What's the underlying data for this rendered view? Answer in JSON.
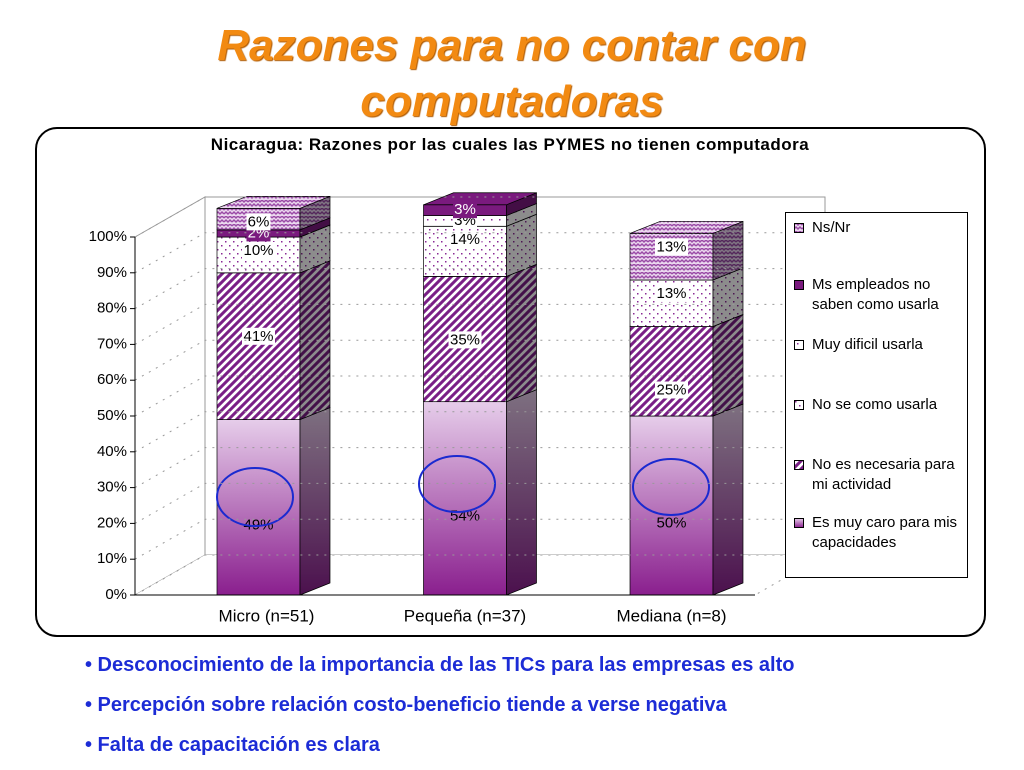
{
  "title": "Razones para no contar con computadoras",
  "chart_data": {
    "type": "bar3d_stacked",
    "title": "Nicaragua: Razones por las cuales las PYMES no tienen computadora",
    "categories": [
      "Micro (n=51)",
      "Pequeña (n=37)",
      "Mediana (n=8)"
    ],
    "series": [
      {
        "name": "Es muy caro para mis capacidades",
        "color": "#8a1f8e",
        "values": [
          49,
          54,
          50
        ],
        "value_labels": [
          "49%",
          "54%",
          "50%"
        ]
      },
      {
        "name": "No es necesaria para mi actividad",
        "color": "#7a1f86",
        "values": [
          41,
          35,
          25
        ],
        "value_labels": [
          "41%",
          "35%",
          "25%"
        ]
      },
      {
        "name": "No se como usarla",
        "color": "#8a2a96",
        "values": [
          10,
          14,
          13
        ],
        "value_labels": [
          "10%",
          "14%",
          "13%"
        ]
      },
      {
        "name": "Muy dificil usarla",
        "color": "#8a2a96",
        "values": [
          null,
          3,
          null
        ],
        "value_labels": [
          null,
          "3%",
          null
        ]
      },
      {
        "name": "Ms empleados no saben como usarla",
        "color": "#7a1a7e",
        "values": [
          2,
          3,
          null
        ],
        "value_labels": [
          "2%",
          "3%",
          null
        ]
      },
      {
        "name": "Ns/Nr",
        "color": "#9a4aa6",
        "values": [
          6,
          null,
          13
        ],
        "value_labels": [
          "6%",
          null,
          "13%"
        ]
      }
    ],
    "ylim": [
      0,
      100
    ],
    "yticks": [
      {
        "value": 0,
        "label": "0%"
      },
      {
        "value": 10,
        "label": "10%"
      },
      {
        "value": 20,
        "label": "20%"
      },
      {
        "value": 30,
        "label": "30%"
      },
      {
        "value": 40,
        "label": "40%"
      },
      {
        "value": 50,
        "label": "50%"
      },
      {
        "value": 60,
        "label": "60%"
      },
      {
        "value": 70,
        "label": "70%"
      },
      {
        "value": 80,
        "label": "80%"
      },
      {
        "value": 90,
        "label": "90%"
      },
      {
        "value": 100,
        "label": "100%"
      }
    ],
    "grid": true,
    "legend": "right"
  },
  "bullets": [
    "• Desconocimiento de la importancia de las TICs para las empresas es alto",
    "• Percepción sobre relación costo-beneficio tiende a verse negativa",
    "• Falta de capacitación es clara"
  ]
}
